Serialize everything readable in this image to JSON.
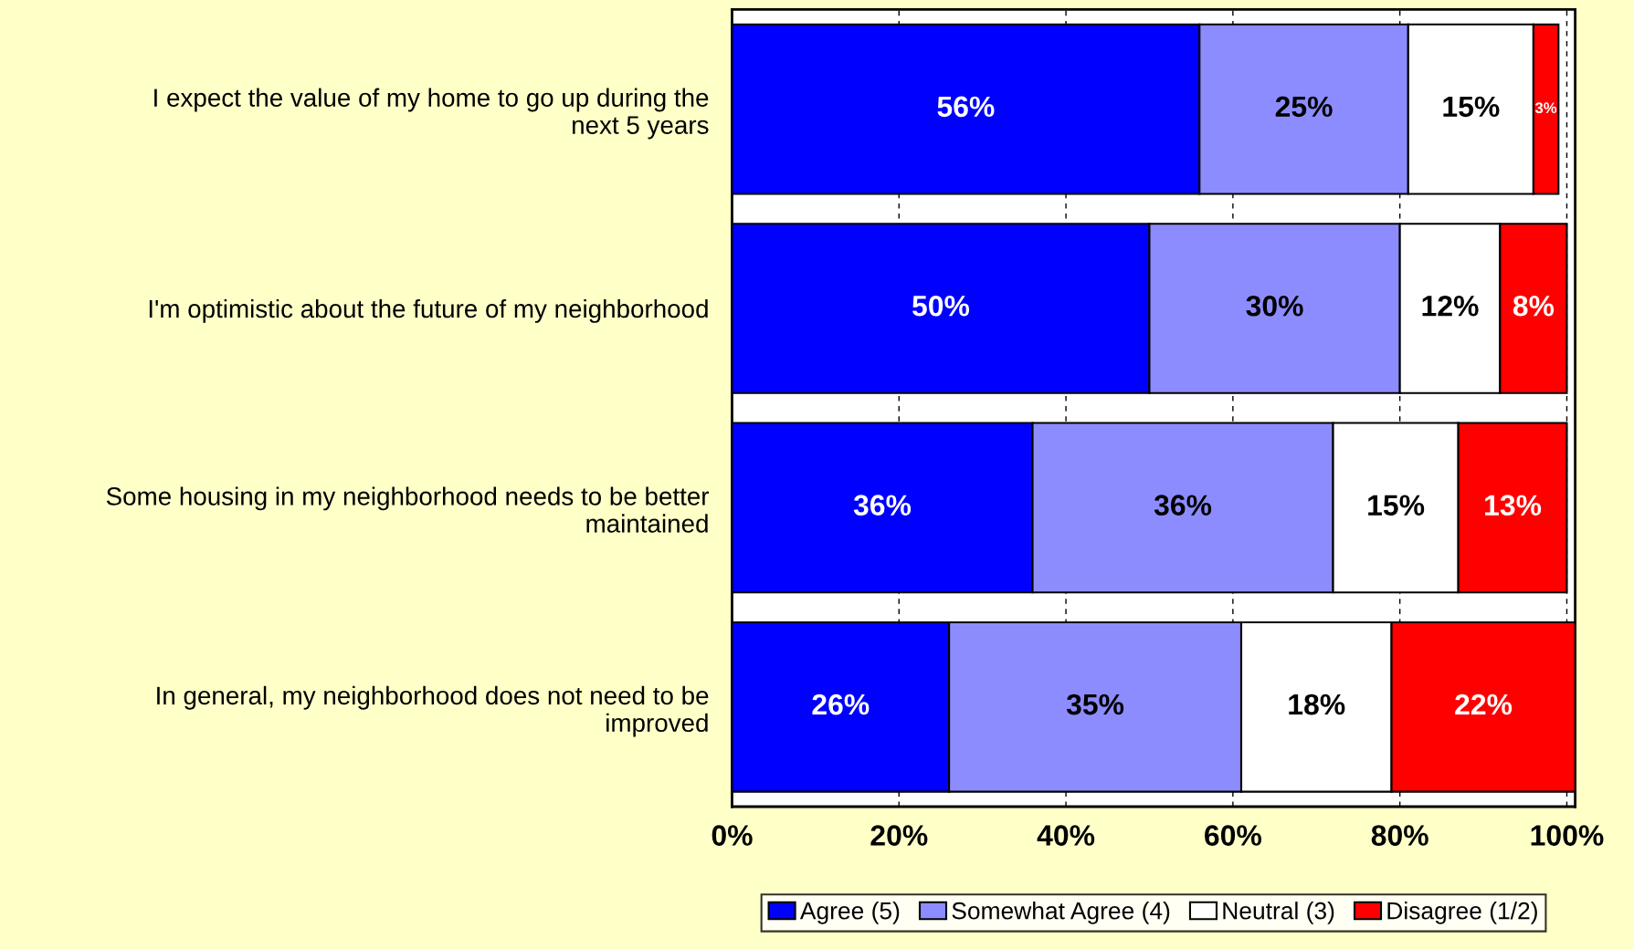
{
  "chart_data": {
    "type": "bar",
    "orientation": "horizontal",
    "stacked": true,
    "categories": [
      "I expect the value of my home to go up during the next 5 years",
      "I'm optimistic about the future of my neighborhood",
      "Some housing in my neighborhood needs to be better maintained",
      "In general, my neighborhood does not need to be improved"
    ],
    "series": [
      {
        "name": "Agree (5)",
        "color": "#0000ff",
        "values": [
          56,
          50,
          36,
          26
        ]
      },
      {
        "name": "Somewhat Agree (4)",
        "color": "#8c8cff",
        "values": [
          25,
          30,
          36,
          35
        ]
      },
      {
        "name": "Neutral (3)",
        "color": "#ffffff",
        "values": [
          15,
          12,
          15,
          18
        ]
      },
      {
        "name": "Disagree (1/2)",
        "color": "#ff0000",
        "values": [
          3,
          8,
          13,
          22
        ]
      }
    ],
    "xlim": [
      0,
      101
    ],
    "xticks": [
      {
        "value": 0,
        "label": "0%"
      },
      {
        "value": 20,
        "label": "20%"
      },
      {
        "value": 40,
        "label": "40%"
      },
      {
        "value": 60,
        "label": "60%"
      },
      {
        "value": 80,
        "label": "80%"
      },
      {
        "value": 100,
        "label": "100%"
      }
    ],
    "value_labels": [
      [
        "56%",
        "50%",
        "36%",
        "26%"
      ],
      [
        "25%",
        "30%",
        "36%",
        "35%"
      ],
      [
        "15%",
        "12%",
        "15%",
        "18%"
      ],
      [
        "3%",
        "8%",
        "13%",
        "22%"
      ]
    ],
    "grid": "x",
    "legend": "bottom"
  }
}
